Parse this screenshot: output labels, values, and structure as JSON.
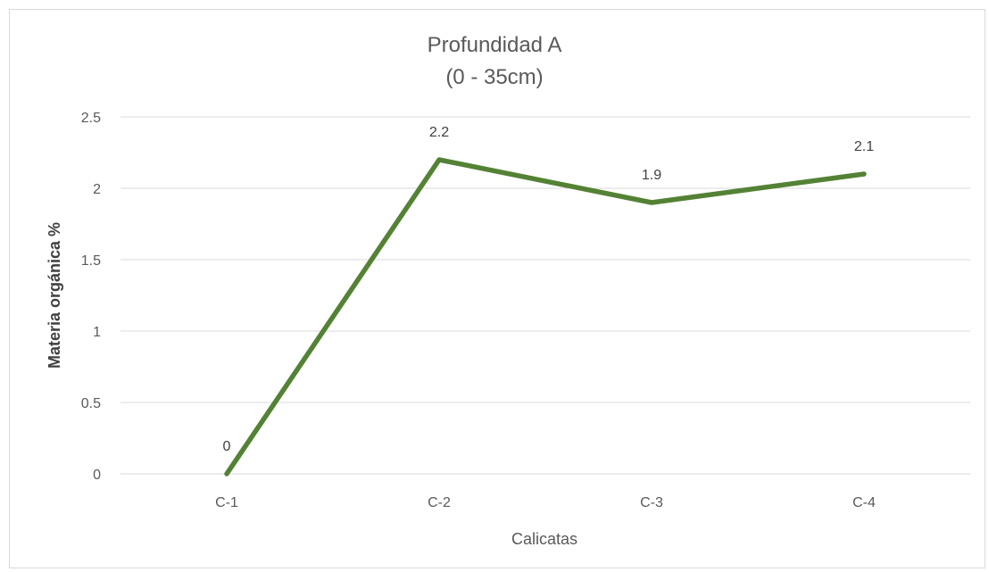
{
  "chart_data": {
    "type": "line",
    "title": "Profundidad A",
    "subtitle": "(0 - 35cm)",
    "xlabel": "Calicatas",
    "ylabel": "Materia orgánica %",
    "categories": [
      "C-1",
      "C-2",
      "C-3",
      "C-4"
    ],
    "series": [
      {
        "values": [
          0,
          2.2,
          1.9,
          2.1
        ],
        "color": "#548235",
        "data_labels": [
          "0",
          "2.2",
          "1.9",
          "2.1"
        ]
      }
    ],
    "ylim": [
      0,
      2.5
    ],
    "yticks": [
      0,
      0.5,
      1,
      1.5,
      2,
      2.5
    ],
    "ytick_labels": [
      "0",
      "0.5",
      "1",
      "1.5",
      "2",
      "2.5"
    ],
    "grid": true,
    "legend": "none"
  }
}
